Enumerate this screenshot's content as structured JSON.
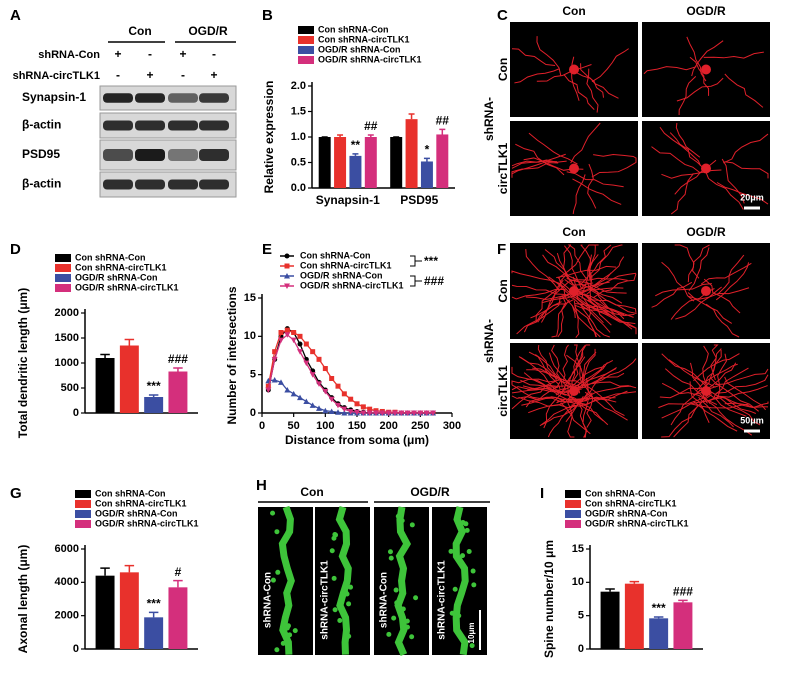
{
  "panel_labels": [
    "A",
    "B",
    "C",
    "D",
    "E",
    "F",
    "G",
    "H",
    "I"
  ],
  "panel_a": {
    "groups": [
      "Con",
      "OGD/R"
    ],
    "conditions": [
      {
        "label": "shRNA-Con",
        "signs": [
          "+",
          "-",
          "+",
          "-"
        ]
      },
      {
        "label": "shRNA-circTLK1",
        "signs": [
          "-",
          "+",
          "-",
          "+"
        ]
      }
    ],
    "bands": [
      "Synapsin-1",
      "β-actin",
      "PSD95",
      "β-actin"
    ]
  },
  "panel_c": {
    "columns": [
      "Con",
      "OGD/R"
    ],
    "row_prefix": "shRNA-",
    "rows": [
      "Con",
      "circTLK1"
    ],
    "scale_bar": "20μm"
  },
  "panel_f": {
    "columns": [
      "Con",
      "OGD/R"
    ],
    "row_prefix": "shRNA-",
    "rows": [
      "Con",
      "circTLK1"
    ],
    "scale_bar": "50μm"
  },
  "panel_h": {
    "columns": [
      "Con",
      "OGD/R"
    ],
    "images": [
      "shRNA-Con",
      "shRNA-circTLK1",
      "shRNA-Con",
      "shRNA-circTLK1"
    ],
    "scale_bar": "10μm"
  },
  "chart_data": [
    {
      "type": "bar",
      "ylabel": "Relative expression",
      "categories": [
        "Synapsin-1",
        "PSD95"
      ],
      "ylim": [
        0,
        2
      ],
      "yticks": [
        {
          "value": 0,
          "label": "0.0"
        },
        {
          "value": 0.5,
          "label": "0.5"
        },
        {
          "value": 1,
          "label": "1.0"
        },
        {
          "value": 1.5,
          "label": "1.5"
        },
        {
          "value": 2,
          "label": "2.0"
        }
      ],
      "series": [
        {
          "name": "Con shRNA-Con",
          "color": "#000000",
          "values": [
            1.0,
            1.0
          ],
          "errors": [
            0,
            0
          ],
          "annotations": [
            null,
            null
          ]
        },
        {
          "name": "Con shRNA-circTLK1",
          "color": "#e8312c",
          "values": [
            1.0,
            1.35
          ],
          "errors": [
            0.04,
            0.1
          ],
          "annotations": [
            null,
            null
          ]
        },
        {
          "name": "OGD/R shRNA-Con",
          "color": "#3b4ea2",
          "values": [
            0.63,
            0.52
          ],
          "errors": [
            0.04,
            0.06
          ],
          "annotations": [
            "**",
            "*"
          ]
        },
        {
          "name": "OGD/R shRNA-circTLK1",
          "color": "#d42f7c",
          "values": [
            1.0,
            1.05
          ],
          "errors": [
            0.04,
            0.1
          ],
          "annotations": [
            "##",
            "##"
          ]
        }
      ]
    },
    {
      "type": "bar",
      "ylabel": "Total dendritic length (μm)",
      "categories": [
        null
      ],
      "ylim": [
        0,
        2000
      ],
      "yticks": [
        0,
        500,
        1000,
        1500,
        2000
      ],
      "series": [
        {
          "name": "Con shRNA-Con",
          "color": "#000000",
          "values": [
            1100
          ],
          "errors": [
            70
          ],
          "annotations": [
            null
          ]
        },
        {
          "name": "Con shRNA-circTLK1",
          "color": "#e8312c",
          "values": [
            1350
          ],
          "errors": [
            120
          ],
          "annotations": [
            null
          ]
        },
        {
          "name": "OGD/R shRNA-Con",
          "color": "#3b4ea2",
          "values": [
            320
          ],
          "errors": [
            40
          ],
          "annotations": [
            "***"
          ]
        },
        {
          "name": "OGD/R shRNA-circTLK1",
          "color": "#d42f7c",
          "values": [
            830
          ],
          "errors": [
            70
          ],
          "annotations": [
            "###"
          ]
        }
      ]
    },
    {
      "type": "line",
      "ylabel": "Number of intersections",
      "xlabel": "Distance from soma (μm)",
      "x": [
        10,
        20,
        30,
        40,
        50,
        60,
        70,
        80,
        90,
        100,
        110,
        120,
        130,
        140,
        150,
        160,
        170,
        180,
        190,
        200,
        210,
        220,
        230,
        240,
        250,
        260,
        270
      ],
      "xlim": [
        0,
        300
      ],
      "xticks": [
        0,
        50,
        100,
        150,
        200,
        250,
        300
      ],
      "ylim": [
        0,
        15
      ],
      "yticks": [
        0,
        5,
        10,
        15
      ],
      "annotations": [
        "***",
        "###"
      ],
      "series": [
        {
          "name": "Con shRNA-Con",
          "color": "#000000",
          "marker": "circle",
          "values": [
            3,
            7,
            10,
            11,
            10.5,
            9,
            7,
            5.5,
            4,
            3,
            2,
            1.2,
            0.7,
            0.4,
            0.2,
            0.1,
            0,
            0,
            0,
            0,
            0,
            0,
            0,
            0,
            0,
            0,
            0
          ]
        },
        {
          "name": "Con shRNA-circTLK1",
          "color": "#e8312c",
          "marker": "square",
          "values": [
            3.5,
            8,
            10.5,
            10.8,
            10.5,
            10,
            9,
            8,
            7,
            5.8,
            4.5,
            3.5,
            2.5,
            1.8,
            1.2,
            0.8,
            0.5,
            0.3,
            0.2,
            0.1,
            0.1,
            0,
            0,
            0,
            0,
            0,
            0
          ]
        },
        {
          "name": "OGD/R shRNA-Con",
          "color": "#3b4ea2",
          "marker": "triangle",
          "values": [
            4.2,
            4.3,
            4,
            3,
            2.5,
            2,
            1.5,
            1,
            0.6,
            0.3,
            0.2,
            0.1,
            0,
            0,
            0,
            0,
            0,
            0,
            0,
            0,
            0,
            0,
            0,
            0,
            0,
            0,
            0
          ]
        },
        {
          "name": "OGD/R shRNA-circTLK1",
          "color": "#d42f7c",
          "marker": "triangle-down",
          "values": [
            3,
            7,
            9.5,
            10.2,
            9.5,
            8,
            6.5,
            5,
            3.8,
            2.8,
            1.8,
            1,
            0.5,
            0.2,
            0.1,
            0,
            0,
            0,
            0,
            0,
            0,
            0,
            0,
            0,
            0,
            0,
            0
          ]
        }
      ]
    },
    {
      "type": "bar",
      "ylabel": "Axonal length (μm)",
      "categories": [
        null
      ],
      "ylim": [
        0,
        6000
      ],
      "yticks": [
        0,
        2000,
        4000,
        6000
      ],
      "series": [
        {
          "name": "Con shRNA-Con",
          "color": "#000000",
          "values": [
            4400
          ],
          "errors": [
            450
          ],
          "annotations": [
            null
          ]
        },
        {
          "name": "Con shRNA-circTLK1",
          "color": "#e8312c",
          "values": [
            4600
          ],
          "errors": [
            400
          ],
          "annotations": [
            null
          ]
        },
        {
          "name": "OGD/R shRNA-Con",
          "color": "#3b4ea2",
          "values": [
            1900
          ],
          "errors": [
            300
          ],
          "annotations": [
            "***"
          ]
        },
        {
          "name": "OGD/R shRNA-circTLK1",
          "color": "#d42f7c",
          "values": [
            3700
          ],
          "errors": [
            400
          ],
          "annotations": [
            "#"
          ]
        }
      ]
    },
    {
      "type": "bar",
      "ylabel": "Spine number/10 μm",
      "categories": [
        null
      ],
      "ylim": [
        0,
        15
      ],
      "yticks": [
        0,
        5,
        10,
        15
      ],
      "series": [
        {
          "name": "Con shRNA-Con",
          "color": "#000000",
          "values": [
            8.6
          ],
          "errors": [
            0.4
          ],
          "annotations": [
            null
          ]
        },
        {
          "name": "Con shRNA-circTLK1",
          "color": "#e8312c",
          "values": [
            9.8
          ],
          "errors": [
            0.3
          ],
          "annotations": [
            null
          ]
        },
        {
          "name": "OGD/R shRNA-Con",
          "color": "#3b4ea2",
          "values": [
            4.6
          ],
          "errors": [
            0.2
          ],
          "annotations": [
            "***"
          ]
        },
        {
          "name": "OGD/R shRNA-circTLK1",
          "color": "#d42f7c",
          "values": [
            7.0
          ],
          "errors": [
            0.3
          ],
          "annotations": [
            "###"
          ]
        }
      ]
    }
  ]
}
